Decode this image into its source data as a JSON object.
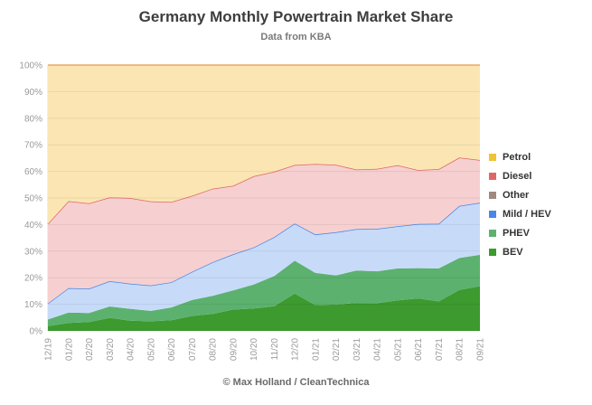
{
  "chart_data": {
    "type": "area",
    "stacked": true,
    "title": "Germany Monthly Powertrain Market Share",
    "subtitle": "Data from KBA",
    "credit": "© Max Holland / CleanTechnica",
    "ylim": [
      0,
      100
    ],
    "yticks": [
      "0%",
      "10%",
      "20%",
      "30%",
      "40%",
      "50%",
      "60%",
      "70%",
      "80%",
      "90%",
      "100%"
    ],
    "categories": [
      "12/19",
      "01/20",
      "02/20",
      "03/20",
      "04/20",
      "05/20",
      "06/20",
      "07/20",
      "08/20",
      "09/20",
      "10/20",
      "11/20",
      "12/20",
      "01/21",
      "02/21",
      "03/21",
      "04/21",
      "05/21",
      "06/21",
      "07/21",
      "08/21",
      "09/21"
    ],
    "legend_position": "right",
    "grid": true,
    "series": [
      {
        "name": "BEV",
        "color": "#3d9a2e",
        "values": [
          1.8,
          3.0,
          3.3,
          4.9,
          3.8,
          3.6,
          4.0,
          5.6,
          6.4,
          8.0,
          8.4,
          9.3,
          14.0,
          9.7,
          9.9,
          10.5,
          10.4,
          11.5,
          12.2,
          11.1,
          15.4,
          16.8
        ]
      },
      {
        "name": "PHEV",
        "color": "#5cb16f",
        "values": [
          2.5,
          3.9,
          3.4,
          4.3,
          4.5,
          3.9,
          4.8,
          6.0,
          6.8,
          7.2,
          9.0,
          11.3,
          12.4,
          12.1,
          11.0,
          12.2,
          12.0,
          12.0,
          11.4,
          12.4,
          12.0,
          11.8
        ]
      },
      {
        "name": "Mild / HEV",
        "color": "#c7dbf9",
        "line_color": "#4a86e8",
        "values": [
          6.0,
          9.2,
          9.2,
          9.5,
          9.5,
          9.6,
          9.5,
          10.6,
          12.6,
          13.6,
          14.0,
          14.7,
          14.0,
          14.5,
          16.2,
          15.6,
          16.0,
          15.9,
          16.6,
          16.8,
          19.6,
          19.6
        ]
      },
      {
        "name": "Other",
        "color": "#a1887f",
        "values": [
          0,
          0,
          0,
          0,
          0,
          0,
          0,
          0,
          0,
          0,
          0,
          0,
          0,
          0,
          0,
          0,
          0,
          0,
          0,
          0,
          0,
          0
        ]
      },
      {
        "name": "Diesel",
        "color": "#f6d0d0",
        "line_color": "#e06666",
        "values": [
          30.0,
          32.7,
          32.1,
          31.5,
          32.2,
          31.6,
          30.2,
          28.6,
          27.7,
          25.8,
          26.8,
          24.6,
          22.0,
          26.5,
          25.4,
          22.4,
          22.6,
          22.9,
          20.3,
          20.6,
          18.2,
          16.1
        ]
      },
      {
        "name": "Petrol",
        "color": "#fbe6b3",
        "line_color": "#f6b26b",
        "values": [
          59.7,
          51.2,
          52.0,
          49.8,
          50.0,
          51.3,
          51.5,
          49.2,
          46.5,
          45.4,
          41.8,
          40.1,
          37.6,
          37.2,
          37.5,
          39.3,
          39.0,
          37.7,
          39.5,
          39.1,
          34.8,
          35.7
        ]
      }
    ],
    "legend": [
      {
        "name": "Petrol",
        "color": "#f1c232"
      },
      {
        "name": "Diesel",
        "color": "#e06666"
      },
      {
        "name": "Other",
        "color": "#a1887f"
      },
      {
        "name": "Mild / HEV",
        "color": "#4a86e8"
      },
      {
        "name": "PHEV",
        "color": "#5cb16f"
      },
      {
        "name": "BEV",
        "color": "#3d9a2e"
      }
    ]
  }
}
